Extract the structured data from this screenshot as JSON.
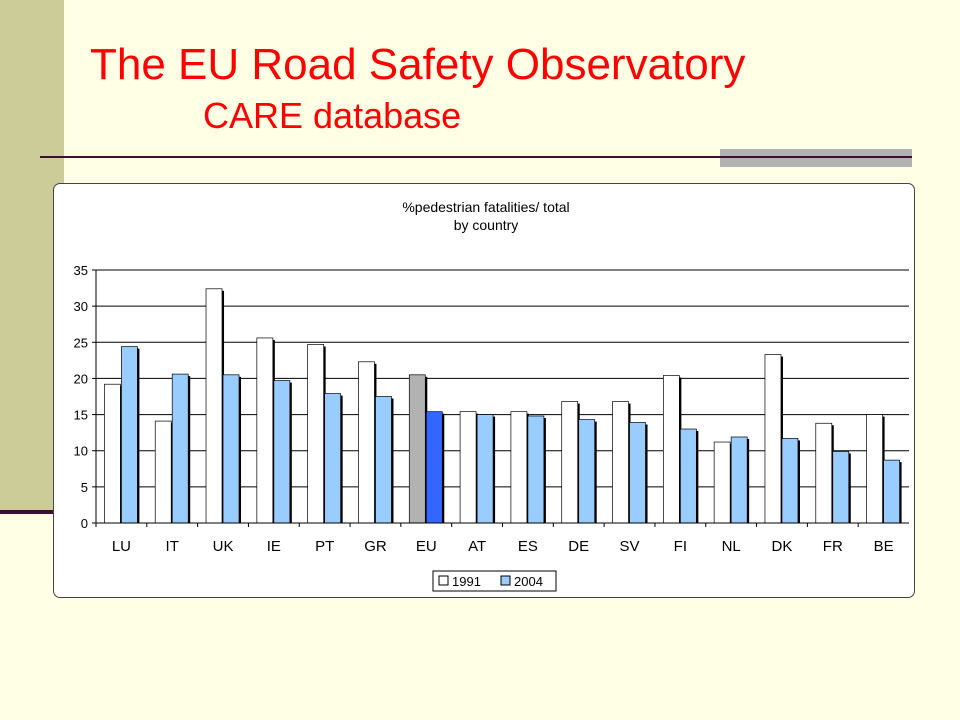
{
  "slide": {
    "title": "The EU Road Safety Observatory",
    "subtitle": "CARE database"
  },
  "colors": {
    "title": "#FF0000",
    "band": "#CCCC99",
    "bar_1991": "#FFFFFF",
    "bar_2004": "#99CCFF",
    "eu_1991": "#B2B2B2",
    "eu_2004": "#3366FF"
  },
  "chart_data": {
    "type": "bar",
    "title": "%pedestrian fatalities/ total",
    "subtitle": "by country",
    "xlabel": "",
    "ylabel": "",
    "ylim": [
      0,
      35
    ],
    "yticks": [
      0,
      5,
      10,
      15,
      20,
      25,
      30,
      35
    ],
    "grid": true,
    "legend_position": "bottom",
    "categories": [
      "LU",
      "IT",
      "UK",
      "IE",
      "PT",
      "GR",
      "EU",
      "AT",
      "ES",
      "DE",
      "SV",
      "FI",
      "NL",
      "DK",
      "FR",
      "BE"
    ],
    "series": [
      {
        "name": "1991",
        "values": [
          19.2,
          14.1,
          32.4,
          25.6,
          24.7,
          22.3,
          20.5,
          15.4,
          15.4,
          16.8,
          16.8,
          20.4,
          11.2,
          23.3,
          13.8,
          15.0
        ]
      },
      {
        "name": "2004",
        "values": [
          24.4,
          20.6,
          20.5,
          19.7,
          17.9,
          17.5,
          15.4,
          15.0,
          14.8,
          14.3,
          13.9,
          13.0,
          11.9,
          11.7,
          9.9,
          8.7
        ]
      }
    ],
    "highlight_category": "EU"
  }
}
